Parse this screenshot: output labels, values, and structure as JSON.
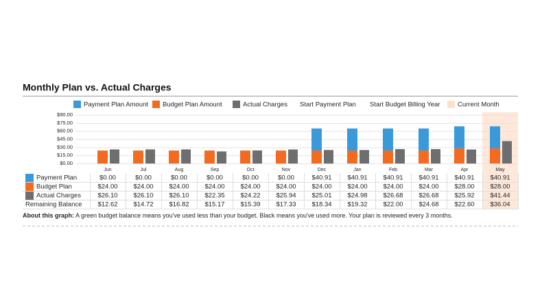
{
  "chart_data": {
    "type": "bar",
    "title": "Monthly Plan vs. Actual Charges",
    "categories": [
      "Jun",
      "Jul",
      "Aug",
      "Sep",
      "Oct",
      "Nov",
      "Dec",
      "Jan",
      "Feb",
      "Mar",
      "Apr",
      "May"
    ],
    "series": [
      {
        "name": "Payment Plan Amount",
        "table_label": "Payment Plan",
        "color": "#3a9ad9",
        "stack": "plan",
        "values": [
          0,
          0,
          0,
          0,
          0,
          0,
          40.91,
          40.91,
          40.91,
          40.91,
          40.91,
          40.91
        ],
        "value_labels": [
          "$0.00",
          "$0.00",
          "$0.00",
          "$0.00",
          "$0.00",
          "$0.00",
          "$40.91",
          "$40.91",
          "$40.91",
          "$40.91",
          "$40.91",
          "$40.91"
        ]
      },
      {
        "name": "Budget Plan Amount",
        "table_label": "Budget Plan",
        "color": "#f26b21",
        "stack": "plan",
        "values": [
          24,
          24,
          24,
          24,
          24,
          24,
          24,
          24,
          24,
          24,
          28,
          28
        ],
        "value_labels": [
          "$24.00",
          "$24.00",
          "$24.00",
          "$24.00",
          "$24.00",
          "$24.00",
          "$24.00",
          "$24.00",
          "$24.00",
          "$24.00",
          "$28.00",
          "$28.00"
        ]
      },
      {
        "name": "Actual Charges",
        "table_label": "Actual Charges",
        "color": "#6d6e70",
        "stack": "actual",
        "values": [
          26.1,
          26.1,
          26.1,
          22.35,
          24.22,
          25.94,
          25.01,
          24.98,
          26.68,
          26.68,
          25.92,
          41.44
        ],
        "value_labels": [
          "$26.10",
          "$26.10",
          "$26.10",
          "$22.35",
          "$24.22",
          "$25.94",
          "$25.01",
          "$24.98",
          "$26.68",
          "$26.68",
          "$25.92",
          "$41.44"
        ]
      }
    ],
    "remaining_balance": {
      "name": "Remaining Balance",
      "labels": [
        "$12.62",
        "$14.72",
        "$16.82",
        "$15.17",
        "$15.39",
        "$17.33",
        "$18.34",
        "$19.32",
        "$22.00",
        "$24.68",
        "$22.60",
        "$36.04"
      ]
    },
    "legend_extra": [
      {
        "name": "Start Payment Plan",
        "color": "#ffffff"
      },
      {
        "name": "Start Budget Billing Year",
        "color": "#ffffff"
      },
      {
        "name": "Current Month",
        "color": "#fde0cc"
      }
    ],
    "highlight": "May",
    "ylim": [
      0,
      90
    ],
    "yticks": [
      {
        "value": 0,
        "label": "$0.00"
      },
      {
        "value": 15,
        "label": "$15.00"
      },
      {
        "value": 30,
        "label": "$30.00"
      },
      {
        "value": 45,
        "label": "$45.00"
      },
      {
        "value": 60,
        "label": "$60.00"
      },
      {
        "value": 75,
        "label": "$75.00"
      },
      {
        "value": 90,
        "label": "$90.00"
      }
    ],
    "grid": true,
    "footnote": {
      "label": "About this graph:",
      "text": "A green budget balance means you've used less than your budget. Black means you've used more. Your plan is reviewed every 3 months."
    }
  }
}
